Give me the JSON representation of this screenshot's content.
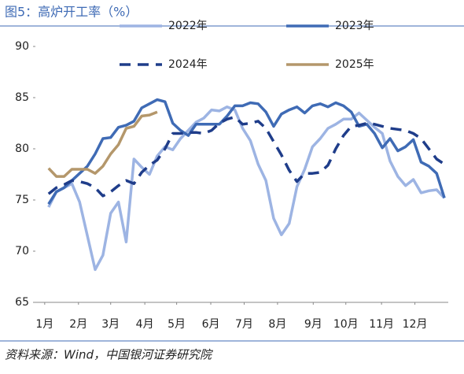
{
  "chart_data": {
    "type": "line",
    "title": "图5：高炉开工率（%）",
    "source": "资料来源：Wind，中国银河证券研究院",
    "x": [
      0,
      1,
      2,
      3,
      4,
      5,
      6,
      7,
      8,
      9,
      10,
      11,
      12,
      13,
      14,
      15,
      16,
      17,
      18,
      19,
      20,
      21,
      22,
      23,
      24,
      25,
      26,
      27,
      28,
      29,
      30,
      31,
      32,
      33,
      34,
      35,
      36,
      37,
      38,
      39,
      40,
      41,
      42,
      43,
      44,
      45,
      46,
      47,
      48,
      49,
      50,
      51
    ],
    "xlim": [
      -1.7,
      51.5
    ],
    "xticks": [
      {
        "value": -0.5,
        "label": "1月"
      },
      {
        "value": 3.85,
        "label": "2月"
      },
      {
        "value": 8,
        "label": "3月"
      },
      {
        "value": 12.4,
        "label": "4月"
      },
      {
        "value": 16.5,
        "label": "5月"
      },
      {
        "value": 20.9,
        "label": "6月"
      },
      {
        "value": 25.2,
        "label": "7月"
      },
      {
        "value": 29.5,
        "label": "8月"
      },
      {
        "value": 34.1,
        "label": "9月"
      },
      {
        "value": 38.3,
        "label": "10月"
      },
      {
        "value": 42.9,
        "label": "11月"
      },
      {
        "value": 47.2,
        "label": "12月"
      }
    ],
    "ylim": [
      65,
      90
    ],
    "yticks": [
      65,
      70,
      75,
      80,
      85,
      90
    ],
    "series": [
      {
        "name": "2022年",
        "color": "#9db4e3",
        "dash": false,
        "values": [
          74.3,
          75.8,
          76.2,
          76.6,
          74.8,
          71.5,
          68.2,
          69.6,
          73.7,
          74.8,
          70.9,
          79.0,
          78.2,
          77.5,
          79.3,
          80.2,
          79.9,
          81.0,
          81.8,
          82.6,
          83.0,
          83.8,
          83.7,
          84.1,
          83.8,
          82.0,
          80.8,
          78.5,
          76.9,
          73.2,
          71.6,
          72.7,
          76.3,
          78.0,
          80.2,
          81.0,
          82.0,
          82.4,
          82.9,
          82.9,
          83.5,
          82.8,
          82.1,
          81.5,
          78.8,
          77.3,
          76.4,
          77.0,
          75.7,
          75.9,
          76.0,
          75.2
        ]
      },
      {
        "name": "2023年",
        "color": "#3f6bb5",
        "dash": false,
        "values": [
          74.6,
          75.8,
          76.2,
          76.9,
          77.6,
          78.3,
          79.5,
          81.0,
          81.1,
          82.1,
          82.3,
          82.7,
          84.0,
          84.4,
          84.8,
          84.6,
          82.5,
          81.8,
          81.3,
          82.4,
          82.4,
          82.4,
          82.4,
          83.2,
          84.2,
          84.2,
          84.5,
          84.4,
          83.6,
          82.2,
          83.4,
          83.8,
          84.1,
          83.5,
          84.2,
          84.4,
          84.1,
          84.5,
          84.2,
          83.6,
          82.2,
          82.4,
          81.5,
          80.1,
          81.0,
          79.8,
          80.2,
          80.9,
          78.7,
          78.3,
          77.6,
          75.2
        ]
      },
      {
        "name": "2024年",
        "color": "#1f3d8a",
        "dash": true,
        "values": [
          75.6,
          76.2,
          76.5,
          76.9,
          76.8,
          76.6,
          76.2,
          75.4,
          75.8,
          76.4,
          76.9,
          76.6,
          77.7,
          78.4,
          78.9,
          80.0,
          81.5,
          81.5,
          81.6,
          81.6,
          81.5,
          81.8,
          82.5,
          82.9,
          83.1,
          82.4,
          82.5,
          82.7,
          82.0,
          80.7,
          79.4,
          77.9,
          76.8,
          77.6,
          77.6,
          77.7,
          78.4,
          80.0,
          81.3,
          82.2,
          82.3,
          82.5,
          82.4,
          82.2,
          82.0,
          81.9,
          81.8,
          81.5,
          81.0,
          80.0,
          79.0,
          78.5
        ]
      },
      {
        "name": "2025年",
        "color": "#b4976b",
        "dash": false,
        "values": [
          78.1,
          77.3,
          77.3,
          78.0,
          78.0,
          78.0,
          77.6,
          78.3,
          79.5,
          80.4,
          82.0,
          82.2,
          83.2,
          83.3,
          83.6,
          null,
          null,
          null,
          null,
          null,
          null,
          null,
          null,
          null,
          null,
          null,
          null,
          null,
          null,
          null,
          null,
          null,
          null,
          null,
          null,
          null,
          null,
          null,
          null,
          null,
          null,
          null,
          null,
          null,
          null,
          null,
          null,
          null,
          null,
          null,
          null,
          null
        ]
      }
    ]
  }
}
